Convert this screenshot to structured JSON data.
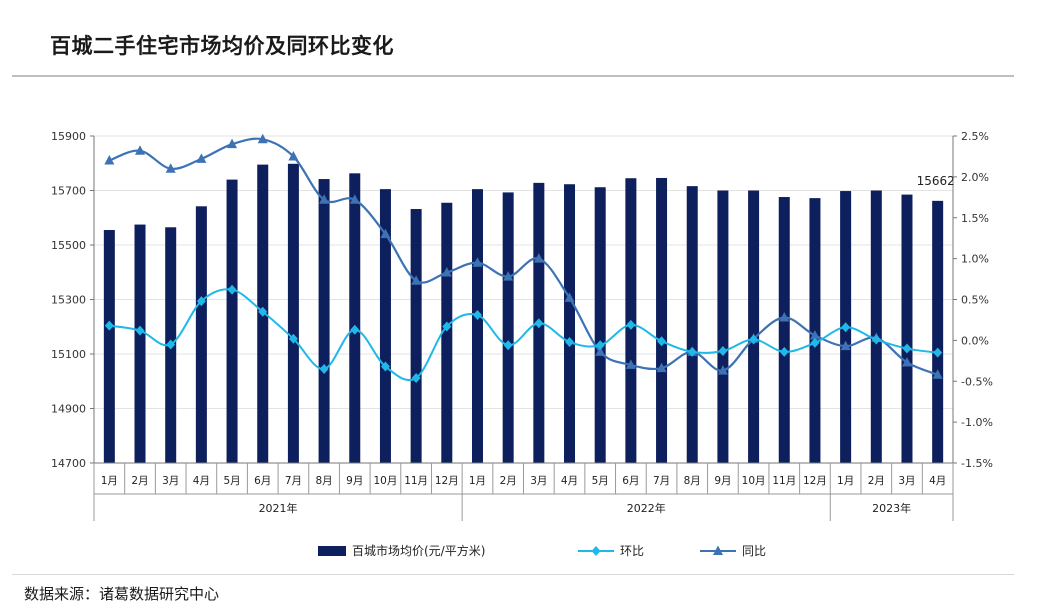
{
  "title": "百城二手住宅市场均价及同环比变化",
  "source": "数据来源：诸葛数据研究中心",
  "chart_data": {
    "type": "bar+line",
    "categories": [
      "1月",
      "2月",
      "3月",
      "4月",
      "5月",
      "6月",
      "7月",
      "8月",
      "9月",
      "10月",
      "11月",
      "12月",
      "1月",
      "2月",
      "3月",
      "4月",
      "5月",
      "6月",
      "7月",
      "8月",
      "9月",
      "10月",
      "11月",
      "12月",
      "1月",
      "2月",
      "3月",
      "4月"
    ],
    "years": [
      {
        "label": "2021年",
        "start": 0,
        "end": 11
      },
      {
        "label": "2022年",
        "start": 12,
        "end": 23
      },
      {
        "label": "2023年",
        "start": 24,
        "end": 27
      }
    ],
    "series": [
      {
        "name": "百城市场均价(元/平方米)",
        "type": "bar",
        "axis": "left",
        "color": "#0d1f5c",
        "values": [
          15555,
          15575,
          15565,
          15642,
          15740,
          15795,
          15798,
          15742,
          15763,
          15705,
          15632,
          15655,
          15705,
          15693,
          15728,
          15723,
          15712,
          15745,
          15746,
          15716,
          15700,
          15700,
          15676,
          15672,
          15698,
          15700,
          15685,
          15662
        ]
      },
      {
        "name": "环比",
        "type": "line",
        "axis": "right",
        "color": "#1fb8e8",
        "marker": "diamond",
        "values": [
          0.18,
          0.12,
          -0.05,
          0.48,
          0.62,
          0.35,
          0.02,
          -0.35,
          0.13,
          -0.32,
          -0.46,
          0.17,
          0.31,
          -0.06,
          0.21,
          -0.02,
          -0.06,
          0.19,
          -0.01,
          -0.14,
          -0.13,
          0.01,
          -0.14,
          -0.03,
          0.16,
          0.01,
          -0.1,
          -0.15
        ]
      },
      {
        "name": "同比",
        "type": "line",
        "axis": "right",
        "color": "#3d72b4",
        "marker": "triangle",
        "values": [
          2.2,
          2.32,
          2.1,
          2.22,
          2.4,
          2.46,
          2.25,
          1.72,
          1.72,
          1.3,
          0.73,
          0.83,
          0.95,
          0.78,
          1.0,
          0.52,
          -0.14,
          -0.3,
          -0.34,
          -0.14,
          -0.37,
          0.02,
          0.28,
          0.06,
          -0.07,
          0.03,
          -0.27,
          -0.42
        ]
      }
    ],
    "left_axis": {
      "min": 14700,
      "max": 15900,
      "ticks": [
        14700,
        14900,
        15100,
        15300,
        15500,
        15700,
        15900
      ]
    },
    "right_axis": {
      "min": -1.5,
      "max": 2.5,
      "ticks": [
        -1.5,
        -1.0,
        -0.5,
        0.0,
        0.5,
        1.0,
        1.5,
        2.0,
        2.5
      ],
      "tick_labels": [
        "-1.5%",
        "-1.0%",
        "-0.5%",
        "0.0%",
        "0.5%",
        "1.0%",
        "1.5%",
        "2.0%",
        "2.5%"
      ]
    },
    "annotation": {
      "index": 27,
      "text": "15662"
    },
    "legend_position": "bottom"
  }
}
